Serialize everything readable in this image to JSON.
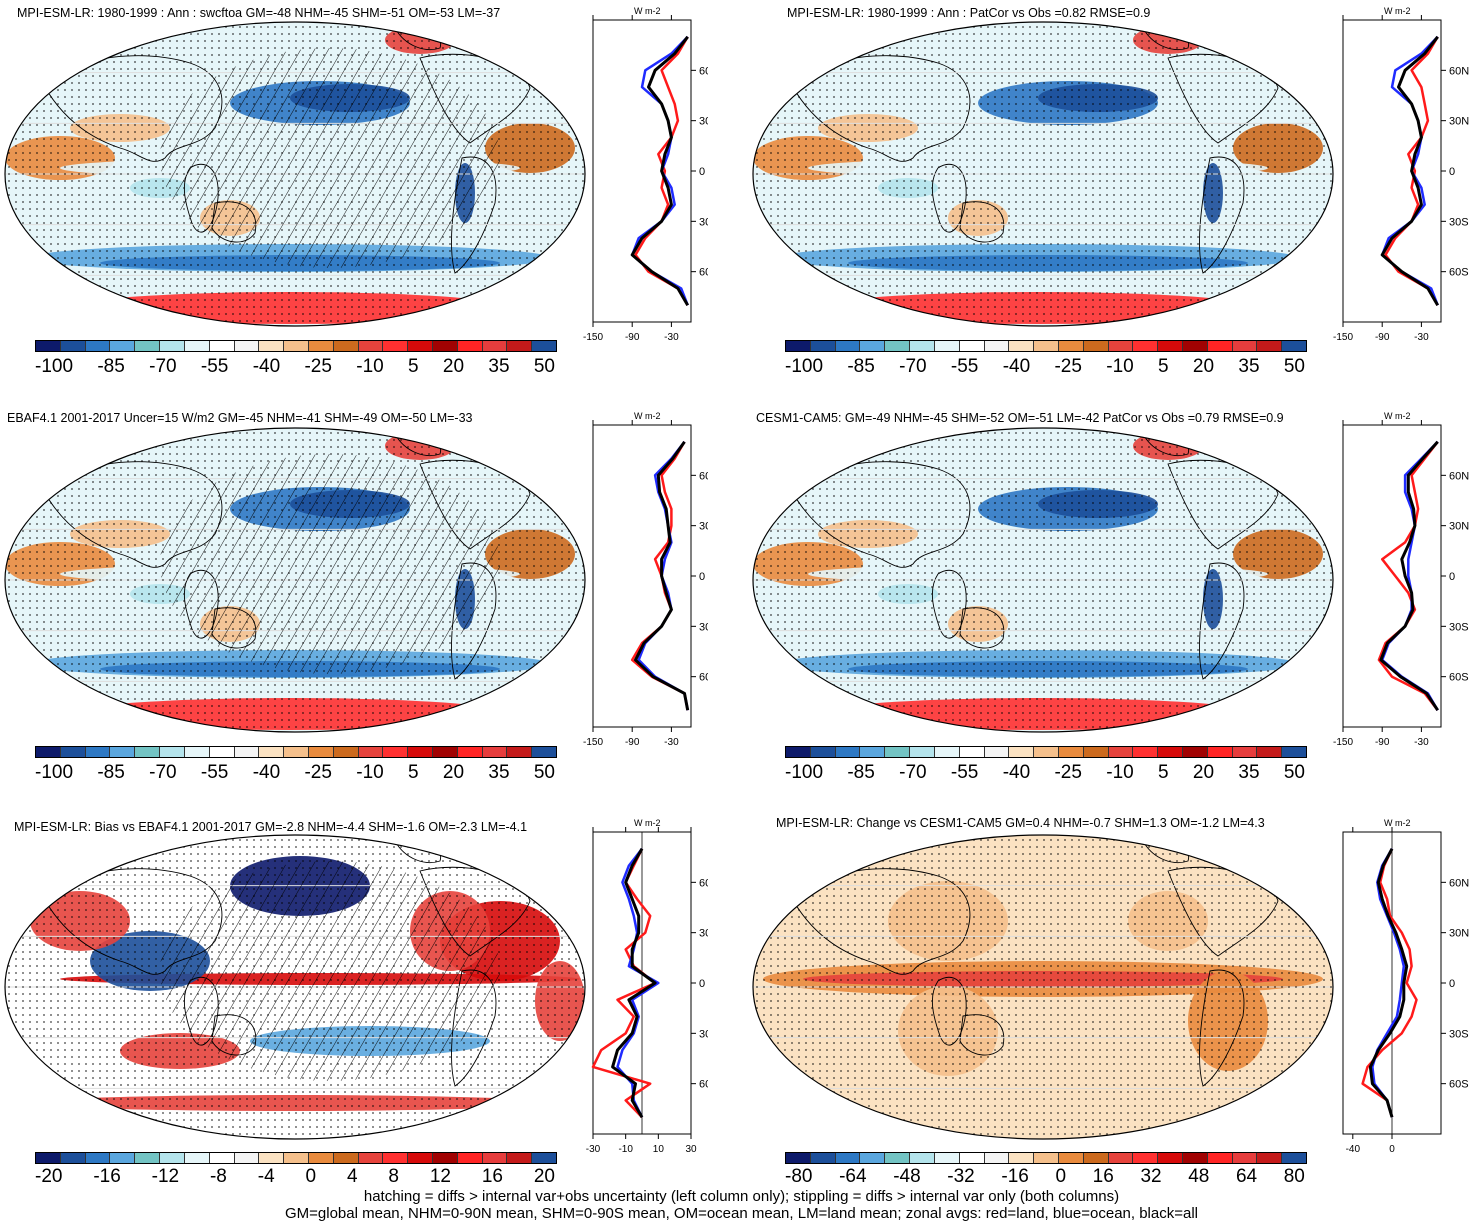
{
  "panels": [
    {
      "title": "MPI-ESM-LR: 1980-1999 : Ann : swcftoa GM=-48 NHM=-45 SHM=-51 OM=-53 LM=-37",
      "scale": "abs",
      "hatch": true,
      "zonal": "abs"
    },
    {
      "title": "MPI-ESM-LR: 1980-1999 : Ann : PatCor vs Obs =0.82 RMSE=0.9",
      "scale": "abs",
      "hatch": false,
      "zonal": "abs"
    },
    {
      "title": "EBAF4.1 2001-2017 Uncer=15 W/m2 GM=-45 NHM=-41 SHM=-49 OM=-50 LM=-33",
      "scale": "abs",
      "hatch": true,
      "zonal": "abs"
    },
    {
      "title": "CESM1-CAM5: GM=-49 NHM=-45 SHM=-52 OM=-51 LM=-42 PatCor vs Obs =0.79 RMSE=0.9",
      "scale": "abs",
      "hatch": false,
      "zonal": "abs"
    },
    {
      "title": "MPI-ESM-LR: Bias vs EBAF4.1 2001-2017 GM=-2.8 NHM=-4.4 SHM=-1.6 OM=-2.3 LM=-4.1",
      "scale": "bias",
      "hatch": true,
      "zonal": "bias"
    },
    {
      "title": "MPI-ESM-LR: Change vs CESM1-CAM5 GM=0.4 NHM=-0.7 SHM=1.3 OM=-1.2 LM=4.3",
      "scale": "change",
      "hatch": false,
      "zonal": "change"
    }
  ],
  "colorbars": {
    "abs": {
      "labels": [
        "-100",
        "-85",
        "-70",
        "-55",
        "-40",
        "-25",
        "-10",
        "5",
        "20",
        "35",
        "50"
      ]
    },
    "bias": {
      "labels": [
        "-20",
        "-16",
        "-12",
        "-8",
        "-4",
        "0",
        "4",
        "8",
        "12",
        "16",
        "20"
      ]
    },
    "change": {
      "labels": [
        "-80",
        "-64",
        "-48",
        "-32",
        "-16",
        "0",
        "16",
        "32",
        "48",
        "64",
        "80"
      ]
    }
  },
  "palette": [
    "#0d1a6b",
    "#1c4f9a",
    "#2d78c4",
    "#5aa6de",
    "#73c4c4",
    "#b4e4ec",
    "#e6f6f9",
    "#ffffff",
    "#f4f4f4",
    "#fbe2c2",
    "#f5c08c",
    "#e98b3e",
    "#cc6a1e",
    "#e6433c",
    "#ff3030",
    "#d60a0a",
    "#a10202",
    "#ff2424",
    "#e63d3d",
    "#c41a1a",
    "#1c4f9a"
  ],
  "zonal_axes": {
    "unit": "W m-2",
    "lat_ticks": [
      "60N",
      "30N",
      "0",
      "30S",
      "60S"
    ],
    "abs_ticks": [
      "-150",
      "-90",
      "-30"
    ],
    "bias_ticks": [
      "-30",
      "-10",
      "10",
      "30"
    ],
    "change_ticks": [
      "-40",
      "0"
    ]
  },
  "line_colors": {
    "land": "#ff1a1a",
    "ocean": "#1f2bff",
    "all": "#000000"
  },
  "chart_data": {
    "type": "line",
    "lat": [
      80,
      70,
      60,
      50,
      40,
      30,
      20,
      10,
      0,
      -10,
      -20,
      -30,
      -40,
      -50,
      -60,
      -70,
      -80
    ],
    "series": [
      {
        "panel": 1,
        "land": [
          -5,
          -20,
          -45,
          -35,
          -25,
          -20,
          -30,
          -50,
          -40,
          -45,
          -35,
          -45,
          -70,
          -85,
          -65,
          -20,
          -5
        ],
        "ocean": [
          -5,
          -30,
          -70,
          -75,
          -45,
          -35,
          -30,
          -35,
          -45,
          -30,
          -25,
          -45,
          -80,
          -90,
          -60,
          -15,
          -5
        ],
        "all": [
          -5,
          -25,
          -55,
          -65,
          -45,
          -35,
          -30,
          -40,
          -45,
          -35,
          -30,
          -45,
          -75,
          -90,
          -60,
          -20,
          -5
        ]
      },
      {
        "panel": 2,
        "land": [
          -5,
          -20,
          -45,
          -30,
          -25,
          -20,
          -30,
          -50,
          -40,
          -45,
          -35,
          -45,
          -70,
          -85,
          -65,
          -20,
          -5
        ],
        "ocean": [
          -5,
          -30,
          -70,
          -75,
          -45,
          -35,
          -30,
          -35,
          -45,
          -30,
          -25,
          -45,
          -80,
          -90,
          -60,
          -15,
          -5
        ],
        "all": [
          -5,
          -25,
          -55,
          -65,
          -45,
          -35,
          -30,
          -40,
          -45,
          -35,
          -30,
          -45,
          -75,
          -90,
          -60,
          -20,
          -5
        ]
      },
      {
        "panel": 3,
        "land": [
          -10,
          -25,
          -45,
          -40,
          -30,
          -30,
          -35,
          -55,
          -45,
          -40,
          -30,
          -45,
          -75,
          -90,
          -60,
          -10,
          -5
        ],
        "ocean": [
          -10,
          -30,
          -55,
          -50,
          -40,
          -35,
          -30,
          -40,
          -45,
          -35,
          -30,
          -45,
          -70,
          -80,
          -55,
          -10,
          -5
        ],
        "all": [
          -10,
          -28,
          -50,
          -48,
          -38,
          -35,
          -32,
          -45,
          -45,
          -38,
          -30,
          -45,
          -72,
          -85,
          -58,
          -10,
          -5
        ]
      },
      {
        "panel": 4,
        "land": [
          -5,
          -25,
          -45,
          -40,
          -35,
          -40,
          -55,
          -90,
          -70,
          -50,
          -40,
          -55,
          -85,
          -95,
          -75,
          -25,
          -5
        ],
        "ocean": [
          -5,
          -30,
          -55,
          -55,
          -45,
          -40,
          -45,
          -50,
          -50,
          -45,
          -45,
          -55,
          -80,
          -90,
          -60,
          -20,
          -5
        ],
        "all": [
          -5,
          -28,
          -50,
          -50,
          -42,
          -40,
          -48,
          -60,
          -55,
          -45,
          -43,
          -55,
          -82,
          -92,
          -62,
          -22,
          -5
        ]
      },
      {
        "panel": 5,
        "land": [
          0,
          -5,
          -10,
          -3,
          5,
          2,
          -10,
          -5,
          8,
          -15,
          -5,
          -10,
          -25,
          -30,
          5,
          -10,
          0
        ],
        "ocean": [
          0,
          -8,
          -12,
          -8,
          -5,
          -3,
          -5,
          -8,
          10,
          -6,
          -2,
          -5,
          -12,
          -15,
          -6,
          -5,
          0
        ],
        "all": [
          0,
          -6,
          -10,
          -6,
          -2,
          -2,
          -6,
          -6,
          8,
          -8,
          -3,
          -6,
          -15,
          -18,
          -4,
          -6,
          0
        ]
      },
      {
        "panel": 6,
        "land": [
          0,
          -8,
          -12,
          -5,
          -2,
          10,
          18,
          20,
          15,
          25,
          20,
          10,
          -10,
          -25,
          -30,
          -5,
          0
        ],
        "ocean": [
          0,
          -10,
          -15,
          -12,
          -5,
          2,
          8,
          12,
          10,
          8,
          5,
          -5,
          -15,
          -20,
          -18,
          -5,
          0
        ],
        "all": [
          0,
          -9,
          -14,
          -10,
          -4,
          4,
          10,
          15,
          12,
          12,
          8,
          -2,
          -14,
          -22,
          -20,
          -5,
          0
        ]
      }
    ]
  },
  "footer": {
    "line1": "hatching = diffs > internal var+obs uncertainty (left column only); stippling = diffs > internal var only (both columns)",
    "line2": "GM=global mean, NHM=0-90N mean, SHM=0-90S mean, OM=ocean mean, LM=land mean; zonal avgs: red=land, blue=ocean, black=all"
  }
}
